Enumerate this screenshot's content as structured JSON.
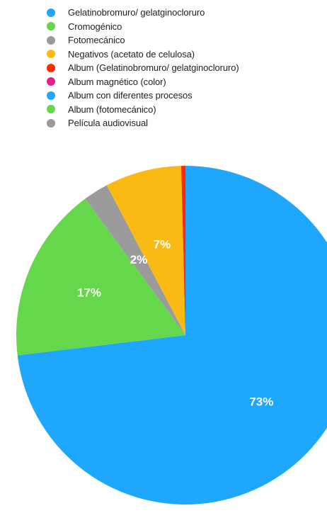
{
  "chart_data": {
    "type": "pie",
    "title": "",
    "legend_position": "top",
    "categories": [
      "Gelatinobromuro/ gelatginocloruro",
      "Cromogénico",
      "Fotomecánico",
      "Negativos (acetato de celulosa)",
      "Album (Gelatinobromuro/ gelatginocloruro)",
      "Album magnético (color)",
      "Album con diferentes procesos",
      "Album (fotomecánico)",
      "Película audiovisual"
    ],
    "values": [
      73.1,
      16.8,
      2.4,
      7.3,
      0.4,
      0,
      0,
      0,
      0
    ],
    "colors": [
      "#1ea7fd",
      "#65d74a",
      "#9b9b9b",
      "#fbb913",
      "#ff2a00",
      "#e0218a",
      "#1ea7fd",
      "#65d74a",
      "#9b9b9b"
    ],
    "data_labels": [
      "73%",
      "17%",
      "2%",
      "7%",
      "",
      "",
      "",
      "",
      ""
    ]
  }
}
